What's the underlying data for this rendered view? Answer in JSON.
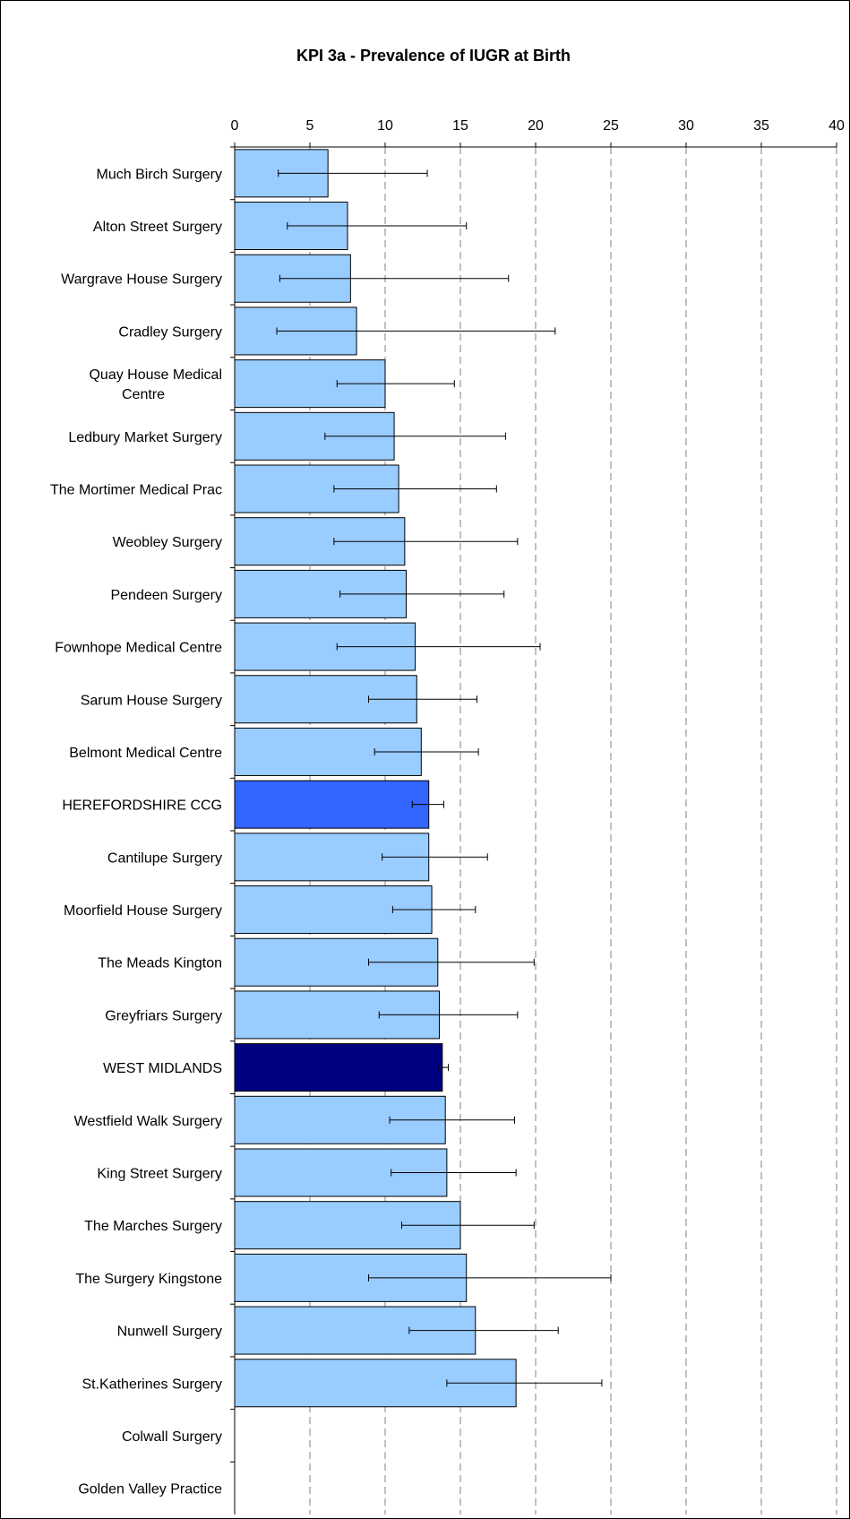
{
  "chart_data": {
    "type": "bar",
    "orientation": "horizontal",
    "title": "KPI 3a - Prevalence of IUGR at Birth",
    "xlabel": "",
    "ylabel": "",
    "xlim": [
      0,
      40
    ],
    "x_ticks": [
      "0",
      "5",
      "10",
      "15",
      "20",
      "25",
      "30",
      "35",
      "40"
    ],
    "x_tick_values": [
      0,
      5,
      10,
      15,
      20,
      25,
      30,
      35,
      40
    ],
    "grid": "vertical dashed",
    "colors": {
      "practice": "#99ccff",
      "ccg": "#3366ff",
      "region": "#000080",
      "border": "#000000",
      "grid": "#808080"
    },
    "categories": [
      {
        "label": "Much Birch Surgery",
        "value": 6.2,
        "ci_low": 2.9,
        "ci_high": 12.8,
        "group": "practice"
      },
      {
        "label": "Alton Street Surgery",
        "value": 7.5,
        "ci_low": 3.5,
        "ci_high": 15.4,
        "group": "practice"
      },
      {
        "label": "Wargrave House Surgery",
        "value": 7.7,
        "ci_low": 3.0,
        "ci_high": 18.2,
        "group": "practice"
      },
      {
        "label": "Cradley Surgery",
        "value": 8.1,
        "ci_low": 2.8,
        "ci_high": 21.3,
        "group": "practice"
      },
      {
        "label": "Quay House Medical Centre",
        "label_lines": [
          "Quay House Medical",
          "Centre"
        ],
        "value": 10.0,
        "ci_low": 6.8,
        "ci_high": 14.6,
        "group": "practice"
      },
      {
        "label": "Ledbury Market Surgery",
        "value": 10.6,
        "ci_low": 6.0,
        "ci_high": 18.0,
        "group": "practice"
      },
      {
        "label": "The Mortimer Medical Prac",
        "value": 10.9,
        "ci_low": 6.6,
        "ci_high": 17.4,
        "group": "practice"
      },
      {
        "label": "Weobley Surgery",
        "value": 11.3,
        "ci_low": 6.6,
        "ci_high": 18.8,
        "group": "practice"
      },
      {
        "label": "Pendeen Surgery",
        "value": 11.4,
        "ci_low": 7.0,
        "ci_high": 17.9,
        "group": "practice"
      },
      {
        "label": "Fownhope Medical Centre",
        "value": 12.0,
        "ci_low": 6.8,
        "ci_high": 20.3,
        "group": "practice"
      },
      {
        "label": "Sarum House Surgery",
        "value": 12.1,
        "ci_low": 8.9,
        "ci_high": 16.1,
        "group": "practice"
      },
      {
        "label": "Belmont Medical Centre",
        "value": 12.4,
        "ci_low": 9.3,
        "ci_high": 16.2,
        "group": "practice"
      },
      {
        "label": "HEREFORDSHIRE CCG",
        "value": 12.9,
        "ci_low": 11.8,
        "ci_high": 13.9,
        "group": "ccg"
      },
      {
        "label": "Cantilupe Surgery",
        "value": 12.9,
        "ci_low": 9.8,
        "ci_high": 16.8,
        "group": "practice"
      },
      {
        "label": "Moorfield House Surgery",
        "value": 13.1,
        "ci_low": 10.5,
        "ci_high": 16.0,
        "group": "practice"
      },
      {
        "label": "The Meads Kington",
        "value": 13.5,
        "ci_low": 8.9,
        "ci_high": 19.9,
        "group": "practice"
      },
      {
        "label": "Greyfriars Surgery",
        "value": 13.6,
        "ci_low": 9.6,
        "ci_high": 18.8,
        "group": "practice"
      },
      {
        "label": "WEST MIDLANDS",
        "value": 13.8,
        "ci_low": 13.5,
        "ci_high": 14.2,
        "group": "region"
      },
      {
        "label": "Westfield Walk Surgery",
        "value": 14.0,
        "ci_low": 10.3,
        "ci_high": 18.6,
        "group": "practice"
      },
      {
        "label": "King Street Surgery",
        "value": 14.1,
        "ci_low": 10.4,
        "ci_high": 18.7,
        "group": "practice"
      },
      {
        "label": "The Marches Surgery",
        "value": 15.0,
        "ci_low": 11.1,
        "ci_high": 19.9,
        "group": "practice"
      },
      {
        "label": "The Surgery Kingstone",
        "value": 15.4,
        "ci_low": 8.9,
        "ci_high": 25.0,
        "group": "practice"
      },
      {
        "label": "Nunwell Surgery",
        "value": 16.0,
        "ci_low": 11.6,
        "ci_high": 21.5,
        "group": "practice"
      },
      {
        "label": "St.Katherines Surgery",
        "value": 18.7,
        "ci_low": 14.1,
        "ci_high": 24.4,
        "group": "practice"
      },
      {
        "label": "Colwall Surgery",
        "value": 0,
        "group": "practice"
      },
      {
        "label": "Golden Valley Practice",
        "value": 0,
        "group": "practice"
      }
    ]
  }
}
